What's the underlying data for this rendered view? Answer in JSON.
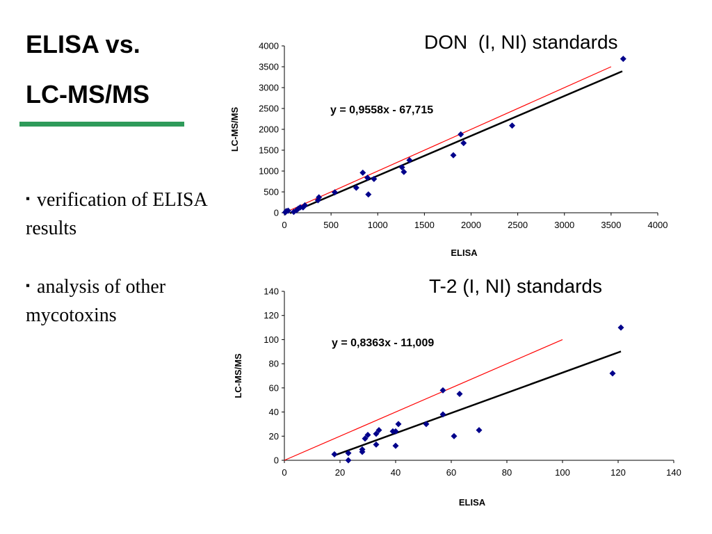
{
  "slide": {
    "title_line1": "ELISA vs.",
    "title_line2": "LC-MS/MS",
    "accent_color": "#2e9b5a",
    "bullets": [
      {
        "marker": "▪",
        "text": "verification of ELISA results"
      },
      {
        "marker": "▪",
        "text": "analysis of other mycotoxins"
      }
    ]
  },
  "chart_data": [
    {
      "type": "scatter",
      "title": "DON  (I, NI) standards",
      "xlabel": "ELISA",
      "ylabel": "LC-MS/MS",
      "xlim": [
        0,
        4000
      ],
      "ylim": [
        0,
        4000
      ],
      "xticks": [
        0,
        500,
        1000,
        1500,
        2000,
        2500,
        3000,
        3500,
        4000
      ],
      "yticks": [
        0,
        500,
        1000,
        1500,
        2000,
        2500,
        3000,
        3500,
        4000
      ],
      "grid": false,
      "marker_color": "#00008b",
      "equation": "y = 0,9558x - 67,715",
      "trendline": {
        "slope": 0.9558,
        "intercept": -67.715,
        "x_range": [
          60,
          3620
        ],
        "color": "#000000"
      },
      "reference_line": {
        "slope": 1,
        "intercept": 0,
        "x_range": [
          0,
          3500
        ],
        "color": "#ff0000"
      },
      "points": [
        [
          10,
          10
        ],
        [
          20,
          40
        ],
        [
          40,
          50
        ],
        [
          100,
          20
        ],
        [
          130,
          60
        ],
        [
          150,
          100
        ],
        [
          170,
          130
        ],
        [
          200,
          130
        ],
        [
          220,
          180
        ],
        [
          360,
          300
        ],
        [
          370,
          370
        ],
        [
          540,
          490
        ],
        [
          770,
          600
        ],
        [
          840,
          960
        ],
        [
          890,
          840
        ],
        [
          900,
          440
        ],
        [
          960,
          810
        ],
        [
          1260,
          1090
        ],
        [
          1280,
          980
        ],
        [
          1340,
          1260
        ],
        [
          1810,
          1380
        ],
        [
          1890,
          1880
        ],
        [
          1920,
          1670
        ],
        [
          2440,
          2090
        ],
        [
          3630,
          3690
        ]
      ]
    },
    {
      "type": "scatter",
      "title": "T-2 (I, NI) standards",
      "xlabel": "ELISA",
      "ylabel": "LC-MS/MS",
      "xlim": [
        0,
        140
      ],
      "ylim": [
        0,
        140
      ],
      "xticks": [
        0,
        20,
        40,
        60,
        80,
        100,
        120,
        140
      ],
      "yticks": [
        0,
        20,
        40,
        60,
        80,
        100,
        120,
        140
      ],
      "grid": false,
      "marker_color": "#00008b",
      "equation": "y = 0,8363x - 11,009",
      "trendline": {
        "slope": 0.8363,
        "intercept": -11.009,
        "x_range": [
          18,
          121
        ],
        "color": "#000000"
      },
      "reference_line": {
        "slope": 1,
        "intercept": 0,
        "x_range": [
          0,
          100
        ],
        "color": "#ff0000"
      },
      "points": [
        [
          18,
          5
        ],
        [
          23,
          6
        ],
        [
          23,
          0
        ],
        [
          28,
          7
        ],
        [
          28,
          9
        ],
        [
          29,
          18
        ],
        [
          30,
          21
        ],
        [
          33,
          13
        ],
        [
          33,
          22
        ],
        [
          34,
          25
        ],
        [
          39,
          24
        ],
        [
          40,
          12
        ],
        [
          40,
          24
        ],
        [
          41,
          30
        ],
        [
          51,
          30
        ],
        [
          57,
          58
        ],
        [
          57,
          38
        ],
        [
          61,
          20
        ],
        [
          63,
          55
        ],
        [
          70,
          25
        ],
        [
          118,
          72
        ],
        [
          121,
          110
        ]
      ]
    }
  ]
}
